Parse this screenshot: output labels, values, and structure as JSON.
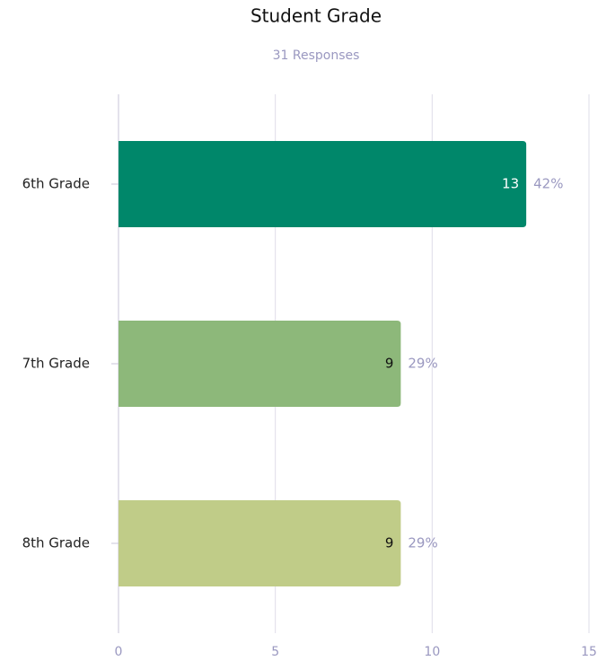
{
  "chart_data": {
    "type": "bar",
    "orientation": "horizontal",
    "title": "Student Grade",
    "subtitle": "31 Responses",
    "categories": [
      "6th Grade",
      "7th Grade",
      "8th Grade"
    ],
    "values": [
      13,
      9,
      9
    ],
    "colors": [
      "#00876a",
      "#8db87a",
      "#c0cc88"
    ],
    "percent_labels": [
      "42%",
      "29%",
      "29%"
    ],
    "xlim": [
      0,
      15
    ],
    "xticks": [
      0,
      5,
      10,
      15
    ],
    "grid": true
  }
}
